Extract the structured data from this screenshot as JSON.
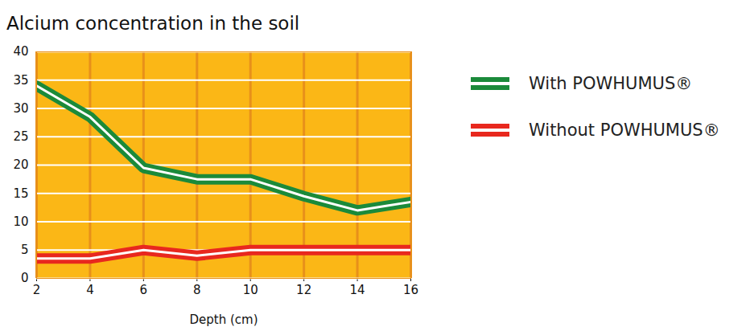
{
  "chart_data": {
    "type": "line",
    "title": "Alcium concentration in the soil",
    "x_label": "Depth (cm)",
    "x": [
      2,
      4,
      6,
      8,
      10,
      12,
      14,
      16
    ],
    "series": [
      {
        "name": "With POWHUMUS®",
        "color": "#1b8a3a",
        "values": [
          34,
          28.5,
          19.5,
          17.5,
          17.5,
          14.5,
          12,
          13.5
        ]
      },
      {
        "name": "Without POWHUMUS®",
        "color": "#e8281e",
        "values": [
          3.5,
          3.5,
          5,
          4,
          5,
          5,
          5,
          5
        ]
      }
    ],
    "xlim": [
      2,
      16
    ],
    "xticks": [
      2,
      4,
      6,
      8,
      10,
      12,
      14,
      16
    ],
    "ylim": [
      0,
      40
    ],
    "yticks": [
      0,
      5,
      10,
      15,
      20,
      25,
      30,
      35,
      40
    ],
    "grid": true,
    "legend": "right"
  }
}
